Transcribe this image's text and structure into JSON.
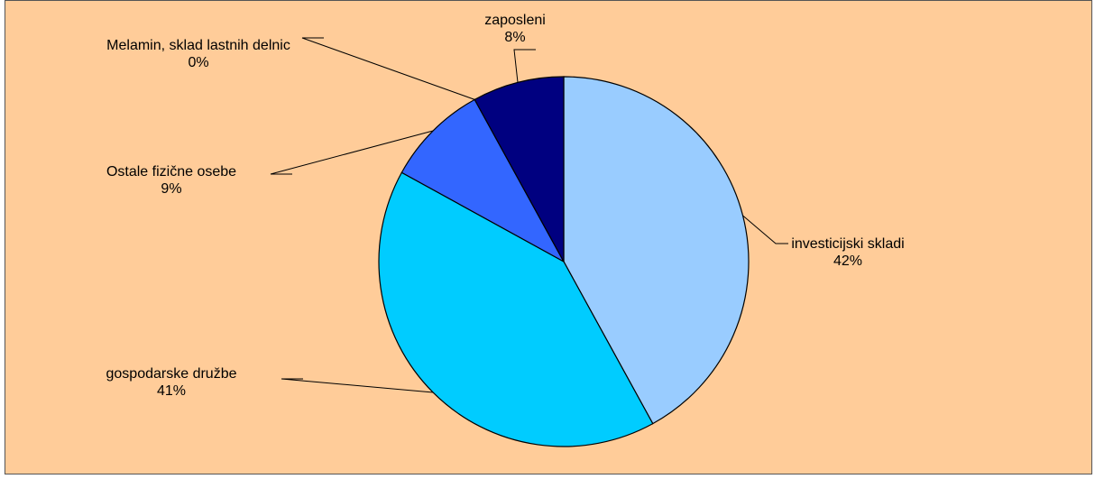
{
  "chart_data": {
    "type": "pie",
    "categories": [
      "investicijski skladi",
      "gospodarske družbe",
      "Ostale fizične osebe",
      "Melamin, sklad lastnih delnic",
      "zaposleni"
    ],
    "values": [
      42,
      41,
      9,
      0,
      8
    ],
    "value_labels": [
      "42%",
      "41%",
      "9%",
      "0%",
      "8%"
    ],
    "colors": [
      "#99ccff",
      "#00ccff",
      "#3366ff",
      "#ccffff",
      "#000080"
    ]
  }
}
